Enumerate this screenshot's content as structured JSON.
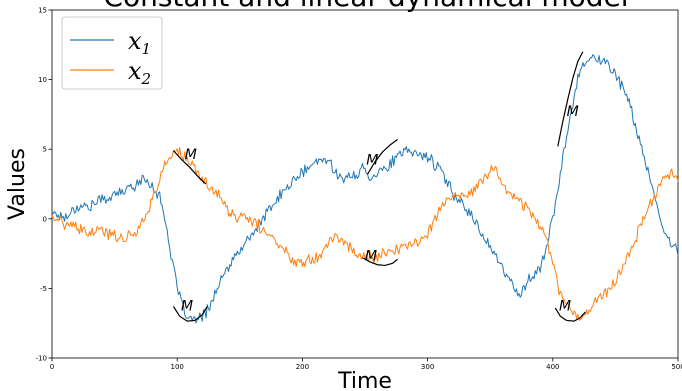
{
  "chart_data": {
    "type": "line",
    "title": "Constant and linear dynamical model",
    "xlabel": "Time",
    "ylabel": "Values",
    "xlim": [
      0,
      500
    ],
    "ylim": [
      -10,
      15
    ],
    "xticks": [
      0,
      100,
      200,
      300,
      400,
      500
    ],
    "yticks": [
      -10,
      -5,
      0,
      5,
      10,
      15
    ],
    "grid": false,
    "legend_position": "top-left",
    "series": [
      {
        "name": "x_1",
        "color": "#1f77b4",
        "keypoints": [
          [
            0,
            0.5
          ],
          [
            10,
            0.1
          ],
          [
            20,
            0.9
          ],
          [
            30,
            0.9
          ],
          [
            40,
            1.4
          ],
          [
            50,
            1.7
          ],
          [
            60,
            2.1
          ],
          [
            70,
            2.7
          ],
          [
            75,
            2.8
          ],
          [
            80,
            2.4
          ],
          [
            85,
            1.8
          ],
          [
            90,
            0.2
          ],
          [
            95,
            -2.5
          ],
          [
            100,
            -5
          ],
          [
            105,
            -6.6
          ],
          [
            110,
            -7.2
          ],
          [
            115,
            -7.3
          ],
          [
            120,
            -7.1
          ],
          [
            125,
            -6.4
          ],
          [
            130,
            -5.4
          ],
          [
            140,
            -3.6
          ],
          [
            150,
            -2.3
          ],
          [
            160,
            -1.1
          ],
          [
            170,
            0.2
          ],
          [
            180,
            1.4
          ],
          [
            190,
            2.5
          ],
          [
            200,
            3.3
          ],
          [
            210,
            4
          ],
          [
            218,
            4.3
          ],
          [
            225,
            3.7
          ],
          [
            232,
            2.8
          ],
          [
            240,
            3
          ],
          [
            248,
            3.6
          ],
          [
            255,
            3
          ],
          [
            260,
            3.4
          ],
          [
            268,
            3.7
          ],
          [
            275,
            4.4
          ],
          [
            285,
            4.9
          ],
          [
            293,
            4.6
          ],
          [
            300,
            4.5
          ],
          [
            310,
            3.5
          ],
          [
            320,
            1.9
          ],
          [
            330,
            0.9
          ],
          [
            340,
            -0.5
          ],
          [
            350,
            -2
          ],
          [
            360,
            -3.6
          ],
          [
            370,
            -5.1
          ],
          [
            375,
            -5.3
          ],
          [
            380,
            -4.4
          ],
          [
            385,
            -4.2
          ],
          [
            390,
            -3.4
          ],
          [
            395,
            -2
          ],
          [
            400,
            0
          ],
          [
            405,
            2.5
          ],
          [
            410,
            5.5
          ],
          [
            415,
            7.8
          ],
          [
            420,
            10.2
          ],
          [
            425,
            11.3
          ],
          [
            430,
            11.7
          ],
          [
            435,
            11.4
          ],
          [
            440,
            11.3
          ],
          [
            445,
            11
          ],
          [
            450,
            10.5
          ],
          [
            460,
            8.6
          ],
          [
            470,
            5.5
          ],
          [
            480,
            1.8
          ],
          [
            490,
            -1.2
          ],
          [
            495,
            -1.9
          ],
          [
            500,
            -2.3
          ]
        ]
      },
      {
        "name": "x_2",
        "color": "#ff7f0e",
        "keypoints": [
          [
            0,
            0.2
          ],
          [
            8,
            -0.2
          ],
          [
            10,
            -0.6
          ],
          [
            15,
            -0.3
          ],
          [
            20,
            -0.8
          ],
          [
            30,
            -1
          ],
          [
            40,
            -0.9
          ],
          [
            50,
            -1.2
          ],
          [
            57,
            -1.3
          ],
          [
            60,
            -1.4
          ],
          [
            65,
            -1
          ],
          [
            70,
            -0.6
          ],
          [
            75,
            0.4
          ],
          [
            80,
            1.3
          ],
          [
            85,
            2.5
          ],
          [
            90,
            3.9
          ],
          [
            95,
            4.6
          ],
          [
            100,
            4.9
          ],
          [
            105,
            4.5
          ],
          [
            110,
            4
          ],
          [
            115,
            3.4
          ],
          [
            120,
            2.9
          ],
          [
            125,
            2.4
          ],
          [
            130,
            2
          ],
          [
            135,
            1.5
          ],
          [
            140,
            0.6
          ],
          [
            145,
            0.3
          ],
          [
            150,
            0
          ],
          [
            155,
            0.1
          ],
          [
            160,
            -0.2
          ],
          [
            165,
            -0.5
          ],
          [
            170,
            -1
          ],
          [
            175,
            -1.3
          ],
          [
            180,
            -1.7
          ],
          [
            185,
            -2.2
          ],
          [
            190,
            -2.8
          ],
          [
            195,
            -3
          ],
          [
            200,
            -3
          ],
          [
            205,
            -2.9
          ],
          [
            210,
            -2.8
          ],
          [
            215,
            -2.4
          ],
          [
            220,
            -1.8
          ],
          [
            225,
            -1.3
          ],
          [
            230,
            -1.4
          ],
          [
            235,
            -1.8
          ],
          [
            240,
            -2.3
          ],
          [
            245,
            -2.5
          ],
          [
            250,
            -2.7
          ],
          [
            255,
            -2.8
          ],
          [
            258,
            -3.1
          ],
          [
            262,
            -2.4
          ],
          [
            270,
            -2.4
          ],
          [
            280,
            -2.1
          ],
          [
            290,
            -1.8
          ],
          [
            295,
            -1.4
          ],
          [
            300,
            -1
          ],
          [
            305,
            0
          ],
          [
            310,
            0.6
          ],
          [
            315,
            1.4
          ],
          [
            320,
            1.6
          ],
          [
            330,
            1.5
          ],
          [
            340,
            2.3
          ],
          [
            345,
            2.9
          ],
          [
            350,
            3.5
          ],
          [
            355,
            3.6
          ],
          [
            360,
            2.3
          ],
          [
            365,
            2
          ],
          [
            370,
            1.6
          ],
          [
            380,
            0.7
          ],
          [
            385,
            0.2
          ],
          [
            390,
            -0.4
          ],
          [
            395,
            -1.4
          ],
          [
            400,
            -3.1
          ],
          [
            405,
            -5.1
          ],
          [
            410,
            -6
          ],
          [
            415,
            -6.6
          ],
          [
            420,
            -7.1
          ],
          [
            425,
            -6.8
          ],
          [
            430,
            -6.4
          ],
          [
            440,
            -5.4
          ],
          [
            450,
            -4.5
          ],
          [
            460,
            -2.8
          ],
          [
            470,
            -0.5
          ],
          [
            480,
            1.5
          ],
          [
            485,
            2.4
          ],
          [
            490,
            3.2
          ],
          [
            495,
            3.3
          ],
          [
            500,
            2.7
          ]
        ]
      }
    ],
    "annotations": [
      {
        "label": "M",
        "at": [
          106,
          4.3
        ],
        "curve": [
          [
            97,
            4.9
          ],
          [
            103,
            4.3
          ],
          [
            110,
            3.7
          ],
          [
            117,
            3.0
          ],
          [
            123,
            2.5
          ]
        ]
      },
      {
        "label": "M",
        "at": [
          103,
          -6.6
        ],
        "curve": [
          [
            97,
            -6.3
          ],
          [
            102,
            -7.0
          ],
          [
            108,
            -7.35
          ],
          [
            114,
            -7.3
          ],
          [
            120,
            -6.9
          ],
          [
            124,
            -6.3
          ]
        ]
      },
      {
        "label": "M",
        "at": [
          251,
          3.9
        ],
        "curve": [
          [
            252,
            3.2
          ],
          [
            258,
            4.1
          ],
          [
            264,
            4.8
          ],
          [
            270,
            5.3
          ],
          [
            276,
            5.7
          ]
        ]
      },
      {
        "label": "M",
        "at": [
          250,
          -3.0
        ],
        "curve": [
          [
            248,
            -2.8
          ],
          [
            254,
            -3.1
          ],
          [
            260,
            -3.3
          ],
          [
            266,
            -3.35
          ],
          [
            272,
            -3.2
          ],
          [
            276,
            -2.9
          ]
        ]
      },
      {
        "label": "M",
        "at": [
          411,
          7.4
        ],
        "curve": [
          [
            404,
            5.2
          ],
          [
            408,
            7.0
          ],
          [
            412,
            8.6
          ],
          [
            416,
            10.1
          ],
          [
            420,
            11.3
          ],
          [
            424,
            12.0
          ]
        ]
      },
      {
        "label": "M",
        "at": [
          405,
          -6.6
        ],
        "curve": [
          [
            402,
            -6.4
          ],
          [
            406,
            -7.0
          ],
          [
            411,
            -7.3
          ],
          [
            417,
            -7.35
          ],
          [
            422,
            -7.1
          ],
          [
            426,
            -6.7
          ]
        ]
      }
    ]
  }
}
